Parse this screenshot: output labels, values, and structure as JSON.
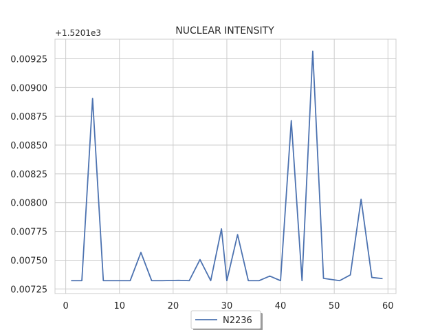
{
  "chart_data": {
    "type": "line",
    "title": "NUCLEAR INTENSITY",
    "offset_label": "+1.5201e3",
    "xlabel": "",
    "ylabel": "",
    "xlim": [
      -2,
      61.5
    ],
    "ylim": [
      0.00721,
      0.00942
    ],
    "xticks": [
      0,
      10,
      20,
      30,
      40,
      50,
      60
    ],
    "yticks": [
      0.00725,
      0.0075,
      0.00775,
      0.008,
      0.00825,
      0.0085,
      0.00875,
      0.009,
      0.00925
    ],
    "ytick_labels": [
      "0.00725",
      "0.00750",
      "0.00775",
      "0.00800",
      "0.00825",
      "0.00850",
      "0.00875",
      "0.00900",
      "0.00925"
    ],
    "grid": true,
    "legend_placement": "bottom-center",
    "series": [
      {
        "name": "N2236",
        "color": "#4c72b0",
        "x": [
          1,
          3,
          5,
          7,
          9,
          12,
          14,
          16,
          18,
          21,
          23,
          25,
          27,
          29,
          30,
          32,
          34,
          36,
          38,
          40,
          42,
          44,
          46,
          48,
          51,
          53,
          55,
          57,
          59
        ],
        "y": [
          0.007322,
          0.007322,
          0.008905,
          0.007322,
          0.007322,
          0.007322,
          0.007567,
          0.007322,
          0.007322,
          0.007325,
          0.007322,
          0.007505,
          0.007322,
          0.007772,
          0.007322,
          0.007722,
          0.007322,
          0.007322,
          0.007362,
          0.007322,
          0.008712,
          0.007322,
          0.009316,
          0.007342,
          0.007322,
          0.007372,
          0.00803,
          0.00735,
          0.00734
        ]
      }
    ]
  }
}
